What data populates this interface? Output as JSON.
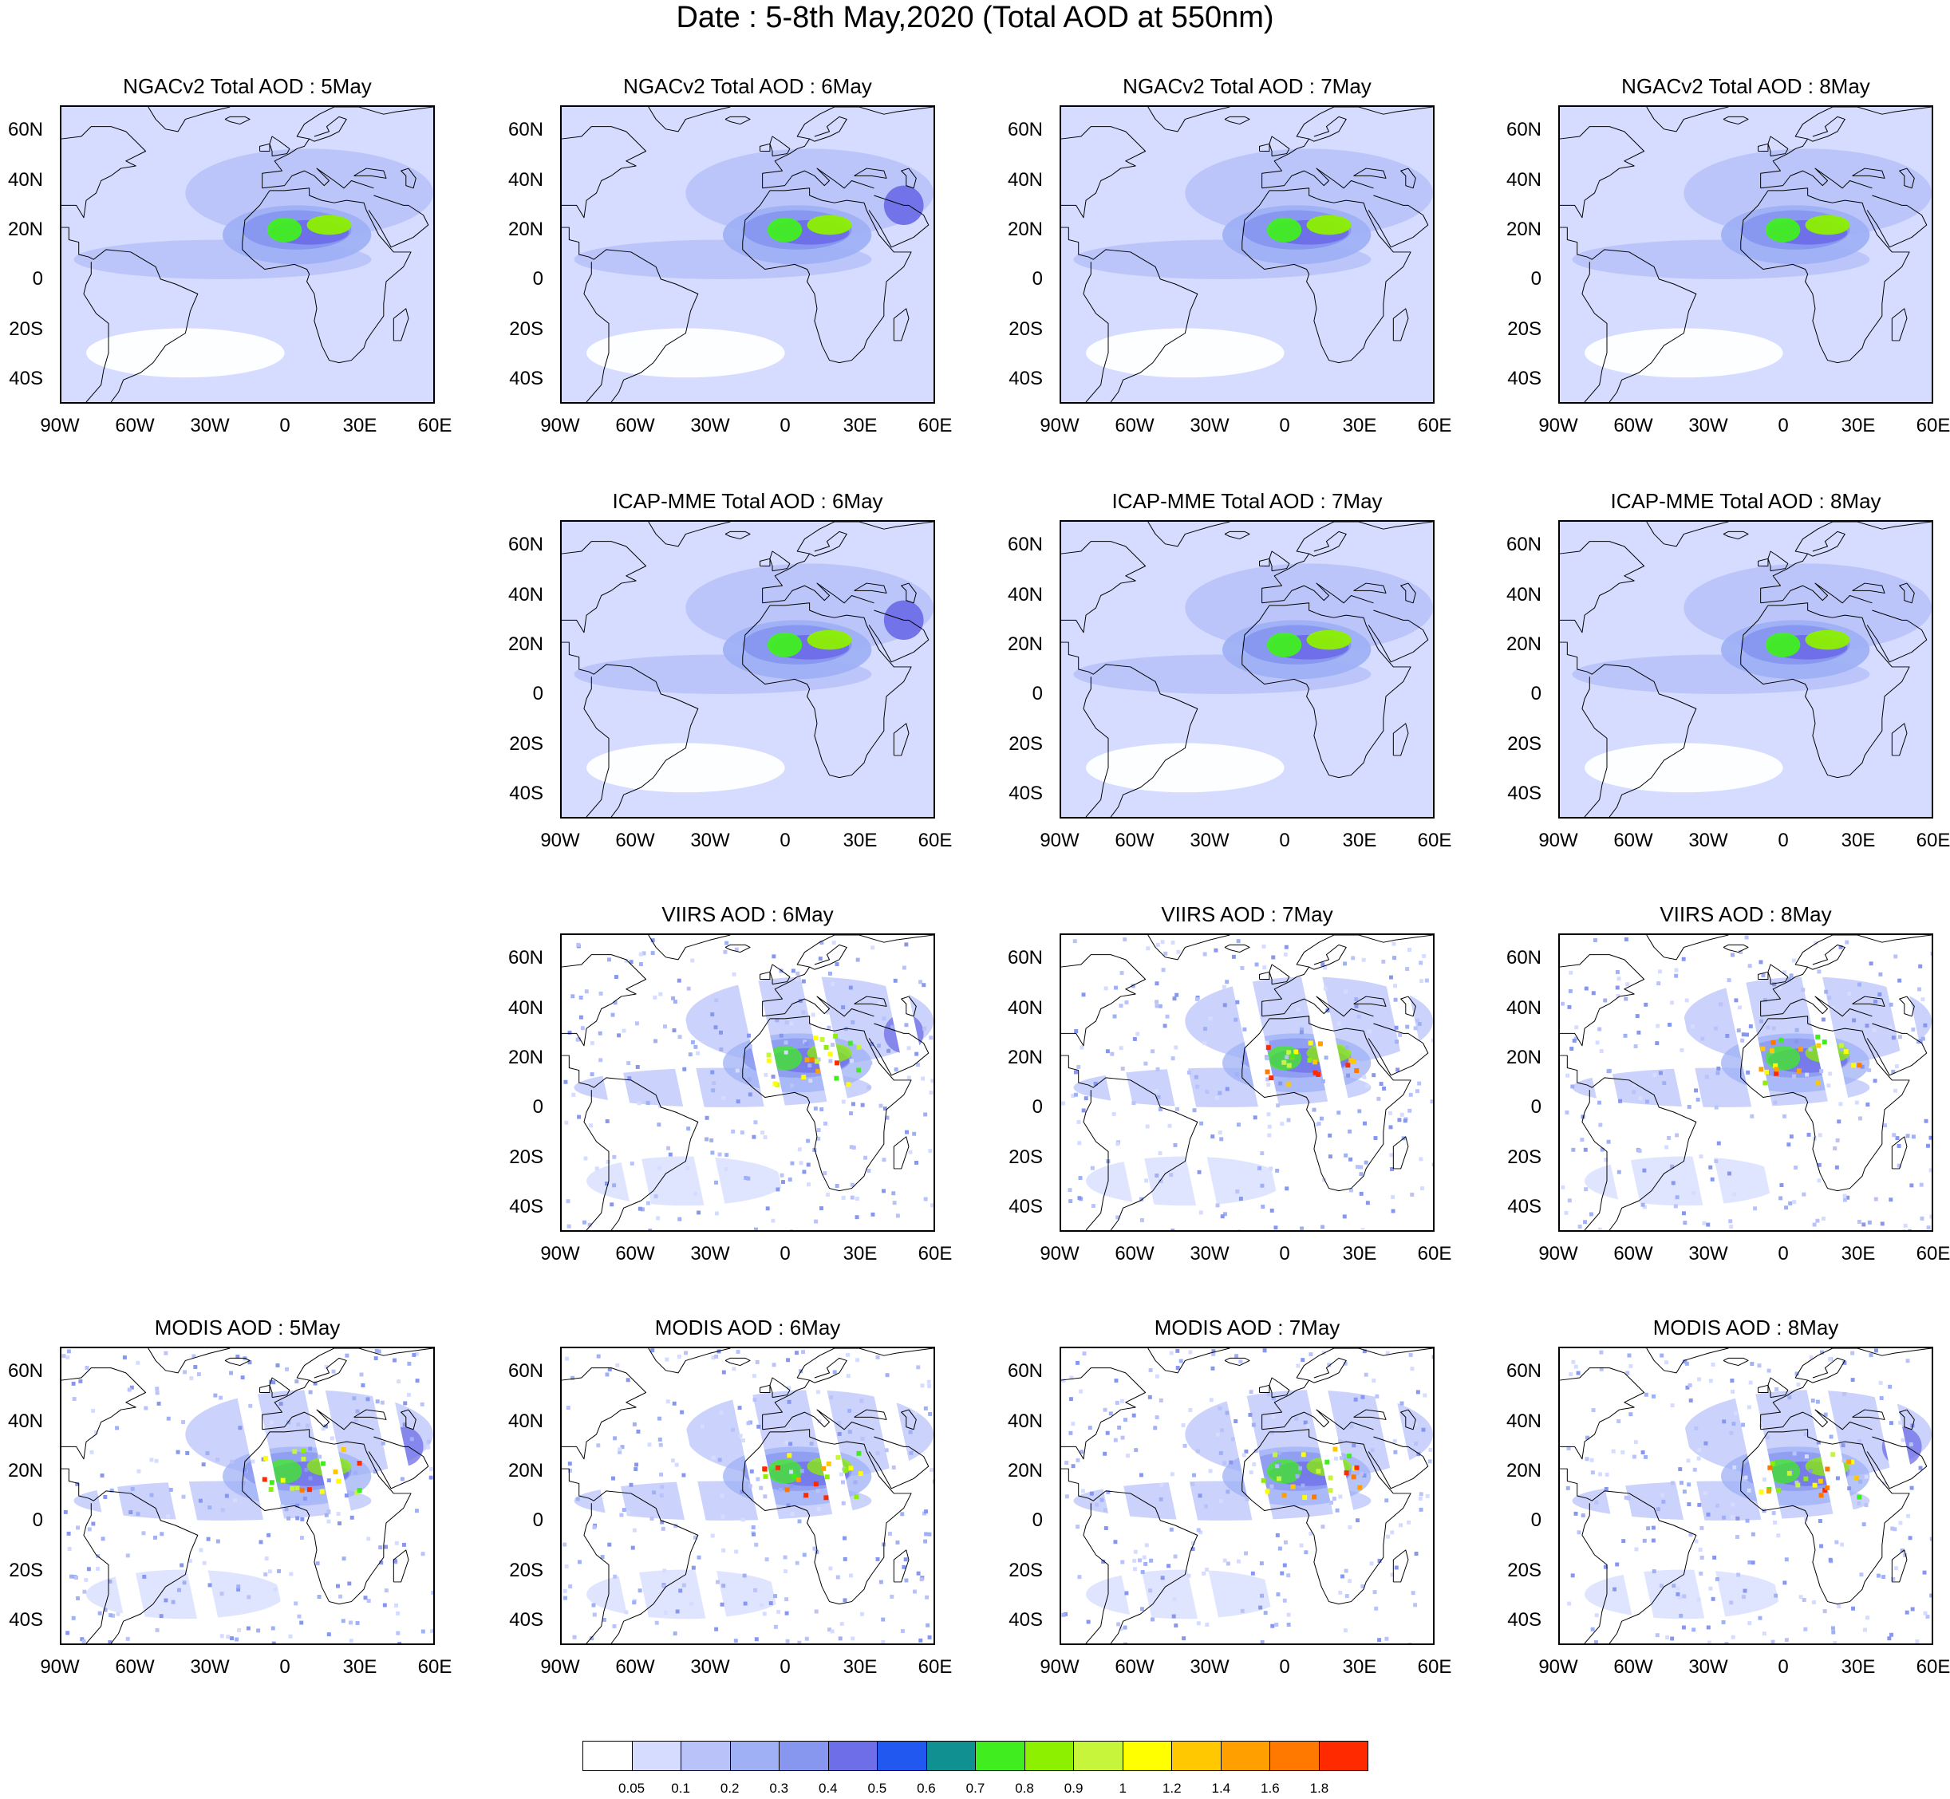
{
  "title": "Date : 5-8th May,2020 (Total AOD at 550nm)",
  "lat_labels": [
    "60N",
    "40N",
    "20N",
    "0",
    "20S",
    "40S"
  ],
  "lat_values": [
    60,
    40,
    20,
    0,
    -20,
    -40
  ],
  "lon_labels": [
    "90W",
    "60W",
    "30W",
    "0",
    "30E",
    "60E"
  ],
  "lon_values": [
    -90,
    -60,
    -30,
    0,
    30,
    60
  ],
  "map_extent": {
    "lon": [
      -90,
      60
    ],
    "lat": [
      -50,
      70
    ]
  },
  "panels": [
    {
      "title": "NGACv2 Total AOD : 5May",
      "row": 0,
      "col": 0,
      "kind": "model"
    },
    {
      "title": "NGACv2 Total AOD : 6May",
      "row": 0,
      "col": 1,
      "kind": "model"
    },
    {
      "title": "NGACv2 Total AOD : 7May",
      "row": 0,
      "col": 2,
      "kind": "model"
    },
    {
      "title": "NGACv2 Total AOD : 8May",
      "row": 0,
      "col": 3,
      "kind": "model"
    },
    {
      "title": "ICAP-MME Total AOD : 6May",
      "row": 1,
      "col": 1,
      "kind": "model"
    },
    {
      "title": "ICAP-MME Total AOD : 7May",
      "row": 1,
      "col": 2,
      "kind": "model"
    },
    {
      "title": "ICAP-MME Total AOD : 8May",
      "row": 1,
      "col": 3,
      "kind": "model"
    },
    {
      "title": "VIIRS AOD : 6May",
      "row": 2,
      "col": 1,
      "kind": "satellite"
    },
    {
      "title": "VIIRS AOD : 7May",
      "row": 2,
      "col": 2,
      "kind": "satellite"
    },
    {
      "title": "VIIRS AOD : 8May",
      "row": 2,
      "col": 3,
      "kind": "satellite"
    },
    {
      "title": "MODIS AOD : 5May",
      "row": 3,
      "col": 0,
      "kind": "satellite"
    },
    {
      "title": "MODIS AOD : 6May",
      "row": 3,
      "col": 1,
      "kind": "satellite"
    },
    {
      "title": "MODIS AOD : 7May",
      "row": 3,
      "col": 2,
      "kind": "satellite"
    },
    {
      "title": "MODIS AOD : 8May",
      "row": 3,
      "col": 3,
      "kind": "satellite"
    }
  ],
  "colorbar": {
    "colors": [
      "#ffffff",
      "#d6dcff",
      "#b9c3f9",
      "#9fb0f5",
      "#8797f0",
      "#6e6ee8",
      "#2058f0",
      "#109090",
      "#40ee20",
      "#8cf000",
      "#c6f53c",
      "#ffff00",
      "#ffc800",
      "#ffa000",
      "#ff7800",
      "#ff2a00"
    ],
    "labels": [
      "0.05",
      "0.1",
      "0.2",
      "0.3",
      "0.4",
      "0.5",
      "0.6",
      "0.7",
      "0.8",
      "0.9",
      "1",
      "1.2",
      "1.4",
      "1.6",
      "1.8"
    ]
  }
}
